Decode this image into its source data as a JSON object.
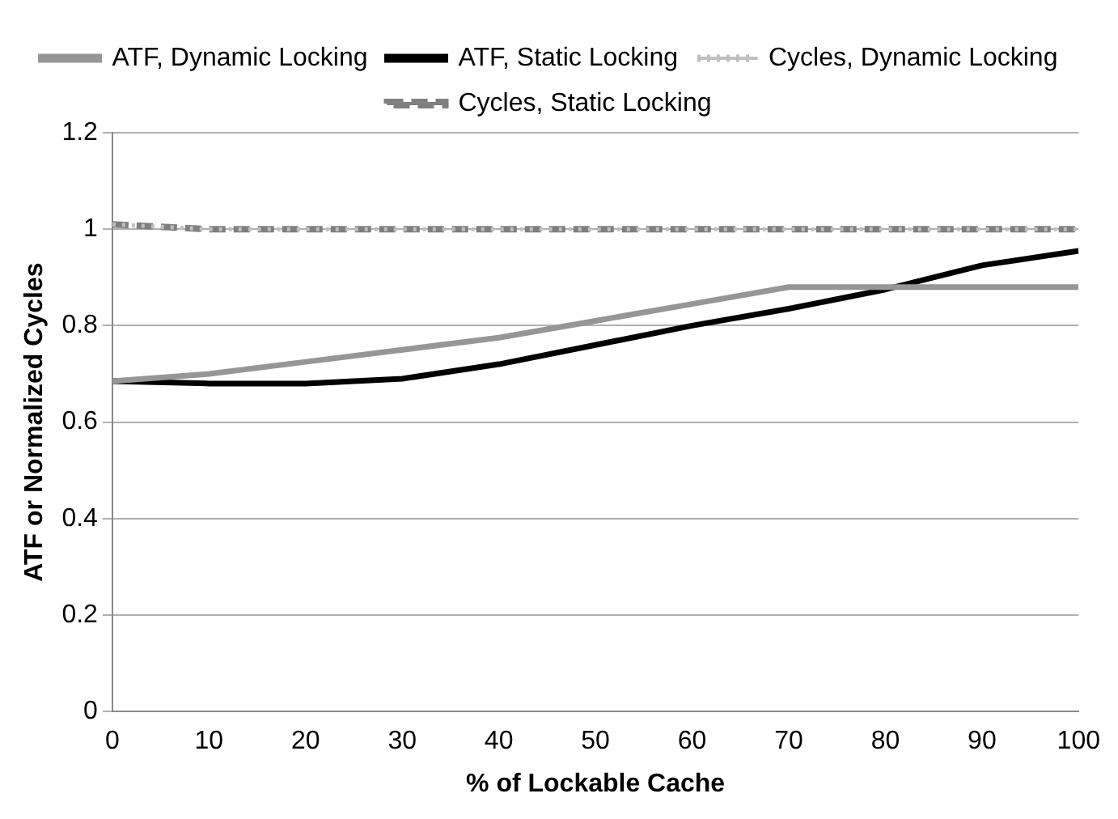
{
  "chart_data": {
    "type": "line",
    "xlabel": "% of Lockable Cache",
    "ylabel": "ATF or Normalized Cycles",
    "x": [
      0,
      10,
      20,
      30,
      40,
      50,
      60,
      70,
      80,
      90,
      100
    ],
    "series": [
      {
        "name": "ATF, Dynamic Locking",
        "color": "#969696",
        "line_style": "solid",
        "values": [
          0.685,
          0.7,
          0.725,
          0.75,
          0.775,
          0.81,
          0.845,
          0.88,
          0.88,
          0.88,
          0.88
        ]
      },
      {
        "name": "ATF, Static Locking",
        "color": "#000000",
        "line_style": "solid",
        "values": [
          0.685,
          0.68,
          0.68,
          0.69,
          0.72,
          0.76,
          0.8,
          0.835,
          0.875,
          0.925,
          0.955
        ]
      },
      {
        "name": "Cycles, Dynamic Locking",
        "color": "#bfbfbf",
        "line_style": "dotted",
        "values": [
          1.01,
          1,
          1,
          1,
          1,
          1,
          1,
          1,
          1,
          1,
          1
        ]
      },
      {
        "name": "Cycles, Static Locking",
        "color": "#7f7f7f",
        "line_style": "dashed",
        "values": [
          1.01,
          1,
          1,
          1,
          1,
          1,
          1,
          1,
          1,
          1,
          1
        ]
      }
    ],
    "xlim": [
      0,
      100
    ],
    "xticks": [
      0,
      10,
      20,
      30,
      40,
      50,
      60,
      70,
      80,
      90,
      100
    ],
    "ylim": [
      0,
      1.2
    ],
    "yticks": [
      0,
      0.2,
      0.4,
      0.6,
      0.8,
      1,
      1.2
    ],
    "grid": "y",
    "legend": "top",
    "marker": "none"
  }
}
